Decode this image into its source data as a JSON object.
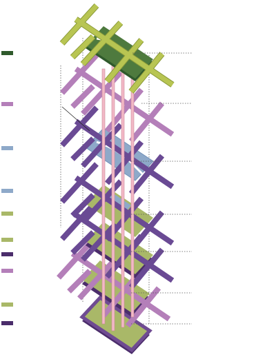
{
  "legend": [
    {
      "color": "#2f5a2c"
    },
    {
      "color": "#b47fb9"
    },
    {
      "color": "#8ea9c9"
    },
    {
      "color": "#8ea9c9"
    },
    {
      "color": "#a9b868"
    },
    {
      "color": "#a9b868"
    },
    {
      "color": "#4b2d6b"
    },
    {
      "color": "#b47fb9"
    },
    {
      "color": "#a9b868"
    },
    {
      "color": "#4b2d6b"
    }
  ]
}
